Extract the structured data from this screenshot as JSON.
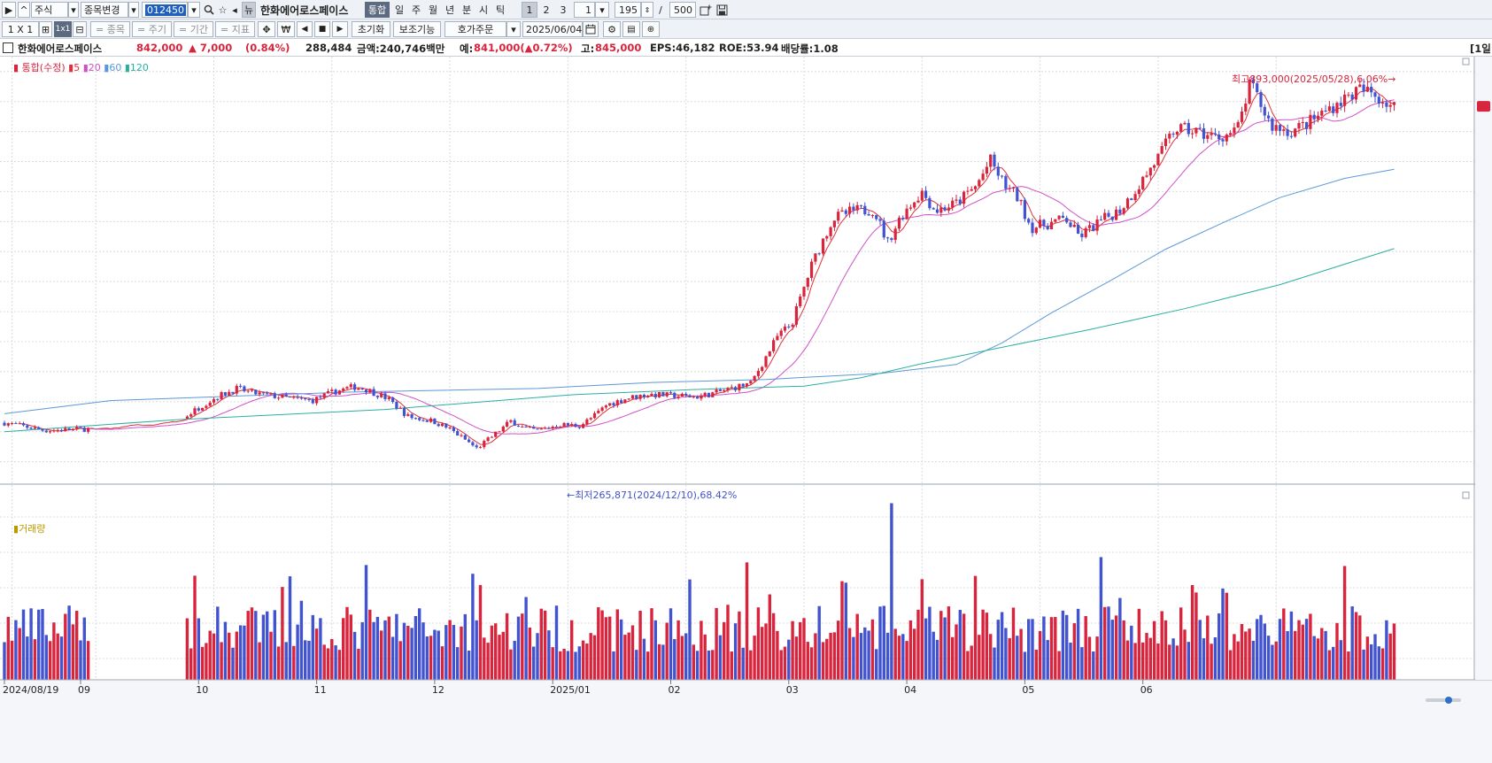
{
  "toolbar1": {
    "market_type": "주식",
    "change_label": "종목변경",
    "code": "012450",
    "name": "한화에어로스페이스",
    "periods": [
      "통합",
      "일",
      "주",
      "월",
      "년",
      "분",
      "시",
      "틱"
    ],
    "active_period": "통합",
    "pages": [
      "1",
      "2",
      "3"
    ],
    "interval": "1",
    "count": "195",
    "separator": "/",
    "total": "500"
  },
  "toolbar2": {
    "layout": "1 X 1",
    "buttons": [
      "= 종목",
      "= 주기",
      "= 기간",
      "= 지표"
    ],
    "won_symbol": "₩",
    "reset_label": "초기화",
    "indicator_label": "보조기능",
    "order_label": "호가주문",
    "date": "2025/06/04"
  },
  "info": {
    "name": "한화에어로스페이스",
    "price": "842,000",
    "change": "▲ 7,000",
    "change_pct": "(0.84%)",
    "volume": "288,484",
    "amount": "금액:240,746백만",
    "expected_label": "예:",
    "expected": "841,000(▲0.72%)",
    "high_label": "고:",
    "high": "845,000",
    "eps": "EPS:46,182",
    "roe": "ROE:53.94",
    "dividend": "배당률:1.08",
    "right_tag": "[1일"
  },
  "chart_data": {
    "type": "candlestick",
    "price_legend": {
      "title": "통합(수정)",
      "ma": [
        "5",
        "20",
        "60",
        "120"
      ]
    },
    "volume_legend": "거래량",
    "annotations": {
      "high": "최고893,000(2025/05/28),6.06%",
      "low": "최저265,871(2024/12/10),68.42%"
    },
    "x_labels": [
      "2024/08/19",
      "09",
      "10",
      "11",
      "12",
      "2025/01",
      "02",
      "03",
      "04",
      "05",
      "06"
    ],
    "ylim": [
      220000,
      910000
    ],
    "moving_averages": {
      "ma60": [
        [
          0,
          330000
        ],
        [
          28,
          352000
        ],
        [
          90,
          366000
        ],
        [
          140,
          372000
        ],
        [
          170,
          382000
        ],
        [
          200,
          387000
        ],
        [
          230,
          397000
        ],
        [
          250,
          412000
        ],
        [
          262,
          448000
        ],
        [
          275,
          498000
        ],
        [
          290,
          550000
        ],
        [
          305,
          604000
        ],
        [
          320,
          648000
        ],
        [
          335,
          690000
        ],
        [
          352,
          722000
        ],
        [
          365,
          737000
        ]
      ],
      "ma120": [
        [
          0,
          300000
        ],
        [
          45,
          320000
        ],
        [
          100,
          337000
        ],
        [
          150,
          362000
        ],
        [
          180,
          370000
        ],
        [
          210,
          376000
        ],
        [
          225,
          390000
        ],
        [
          240,
          412000
        ],
        [
          260,
          438000
        ],
        [
          285,
          470000
        ],
        [
          310,
          505000
        ],
        [
          335,
          545000
        ],
        [
          355,
          585000
        ],
        [
          365,
          605000
        ]
      ]
    },
    "candles_note": "daily candles: open/close/high/low in KRW, volume in shares"
  },
  "colors": {
    "up": "#d8243c",
    "down": "#4253cf",
    "ma5": "#e0303a",
    "ma20": "#d050c8",
    "ma60": "#5a98d8",
    "ma120": "#2ab0a0",
    "grid": "#d8dce2"
  }
}
